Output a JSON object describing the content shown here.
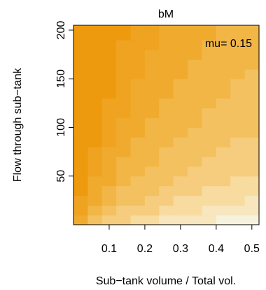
{
  "chart_data": {
    "type": "heatmap",
    "title": "bM",
    "annotation": "mu= 0.15",
    "xlabel": "Sub−tank volume / Total vol.",
    "ylabel": "Flow through sub−tank",
    "xlim": [
      0.0,
      0.52
    ],
    "ylim": [
      0,
      205
    ],
    "xticks": [
      0.1,
      0.2,
      0.3,
      0.4,
      0.5
    ],
    "xtick_labels": [
      "0.1",
      "0.2",
      "0.3",
      "0.4",
      "0.5"
    ],
    "yticks": [
      50,
      100,
      150,
      200
    ],
    "ytick_labels": [
      "50",
      "100",
      "150",
      "200"
    ],
    "x": [
      0.02,
      0.06,
      0.1,
      0.14,
      0.18,
      0.22,
      0.26,
      0.3,
      0.34,
      0.38,
      0.42,
      0.46,
      0.5
    ],
    "y": [
      5,
      15,
      25,
      35,
      45,
      55,
      65,
      75,
      85,
      95,
      105,
      115,
      125,
      135,
      145,
      155,
      165,
      175,
      185,
      195,
      205
    ],
    "levels": [
      0,
      1,
      2,
      3,
      4,
      5,
      6,
      7,
      8,
      9,
      10
    ],
    "colors": [
      "#ED9A0E",
      "#EFA320",
      "#F0AB2F",
      "#F2B646",
      "#F4C160",
      "#F6CD7E",
      "#F8DB9E",
      "#F7E6BE",
      "#F5F3DE",
      "#D5E6EE",
      "#B8D8EC"
    ],
    "grid": false,
    "legend": "none"
  }
}
